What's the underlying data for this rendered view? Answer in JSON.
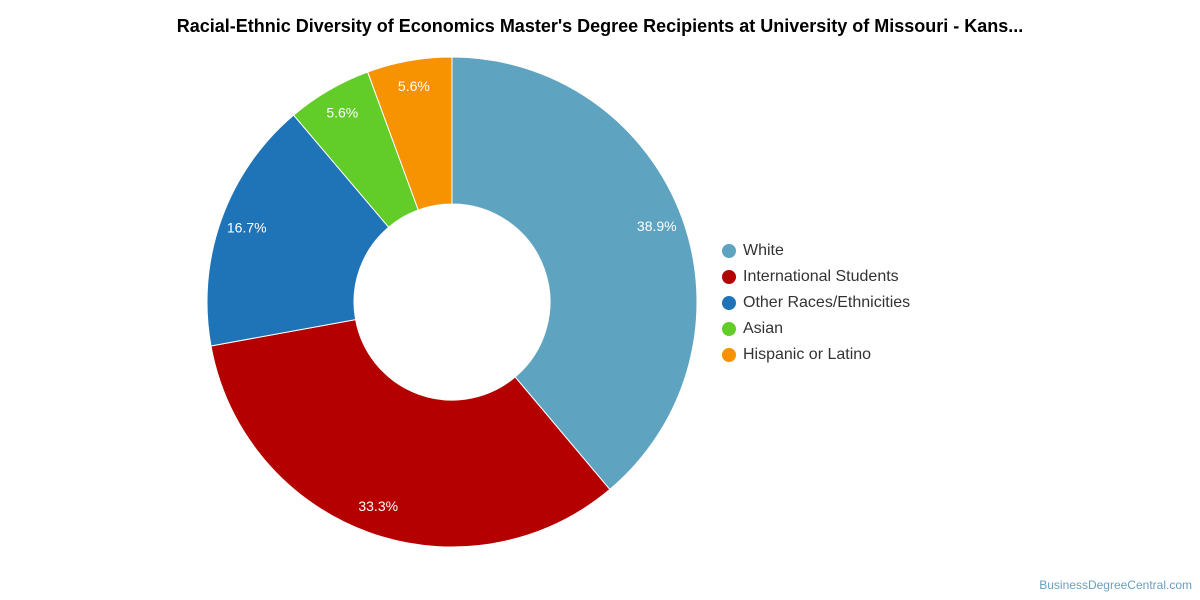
{
  "chart_data": {
    "type": "pie",
    "title": "Racial-Ethnic Diversity of Economics Master's Degree Recipients at University of Missouri - Kans...",
    "categories": [
      "White",
      "International Students",
      "Other Races/Ethnicities",
      "Asian",
      "Hispanic or Latino"
    ],
    "values": [
      38.9,
      33.3,
      16.7,
      5.6,
      5.6
    ],
    "labels": [
      "38.9%",
      "33.3%",
      "16.7%",
      "5.6%",
      "5.6%"
    ],
    "colors": [
      "#5ea3c0",
      "#b50000",
      "#1f73b7",
      "#62cc29",
      "#f79200"
    ],
    "legend_placement": "right"
  },
  "footer": {
    "source": "BusinessDegreeCentral.com"
  }
}
